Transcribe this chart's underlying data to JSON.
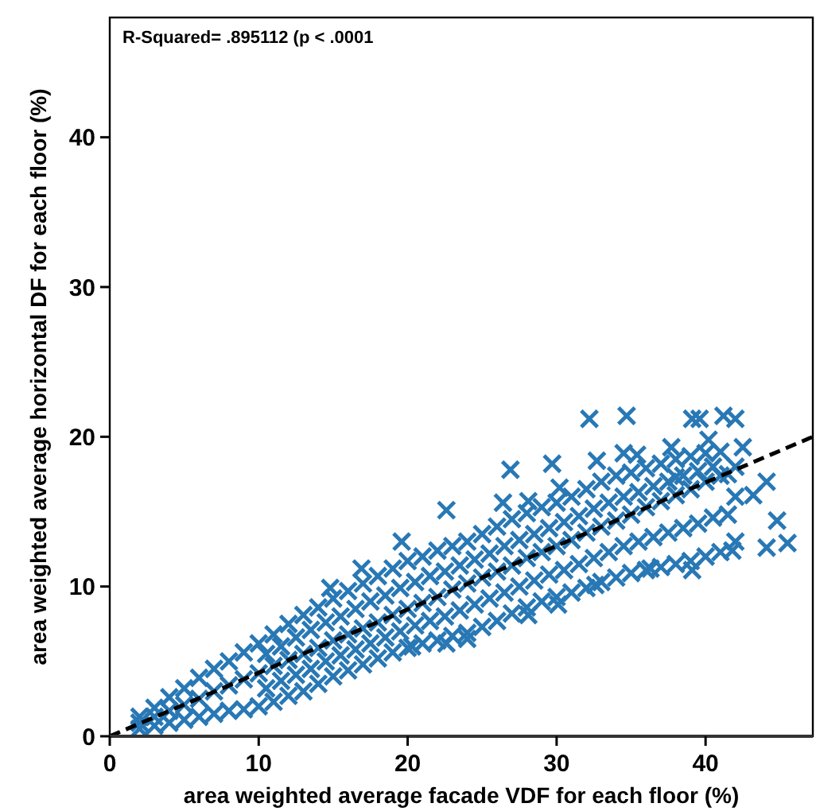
{
  "chart_data": {
    "type": "scatter",
    "xlabel": "area weighted average facade VDF for each floor (%)",
    "ylabel": "area weighted average horizontal DF for each floor (%)",
    "annotations": [
      "R-Squared= .895112 (p < .0001"
    ],
    "xlim": [
      0,
      47.2
    ],
    "ylim": [
      0,
      48
    ],
    "xticks": [
      0,
      10,
      20,
      30,
      40
    ],
    "yticks": [
      0,
      10,
      20,
      30,
      40
    ],
    "series": [
      {
        "color": "#2878b5",
        "marker": "cross",
        "x": [
          2,
          2,
          2,
          3,
          3,
          3,
          4,
          4,
          4,
          5,
          5,
          5,
          6,
          6,
          6,
          7,
          7,
          7,
          8,
          8,
          8,
          9,
          9,
          9,
          10,
          10,
          10,
          11,
          11,
          11,
          12,
          12,
          12,
          13,
          13,
          13,
          14,
          14,
          14,
          15,
          15,
          15,
          16,
          16,
          16,
          17,
          17,
          17,
          18,
          18,
          18,
          19,
          19,
          19,
          20,
          20,
          20,
          21,
          21,
          21,
          22,
          22,
          22,
          23,
          23,
          23,
          24,
          24,
          24,
          25,
          25,
          25,
          26,
          26,
          26,
          27,
          27,
          27,
          28,
          28,
          28,
          29,
          29,
          29,
          30,
          30,
          30,
          31,
          31,
          31,
          32,
          32,
          32,
          33,
          33,
          33,
          34,
          34,
          34,
          35,
          35,
          35,
          36,
          36,
          36,
          37,
          37,
          37,
          38,
          38,
          38,
          39,
          39,
          39,
          40,
          40,
          40,
          41,
          41,
          41,
          42,
          42,
          42,
          10.5,
          10.5,
          11.5,
          11.5,
          12.5,
          12.5,
          13.5,
          13.5,
          14.5,
          14.5,
          15.5,
          15.5,
          16.5,
          16.5,
          17.5,
          17.5,
          18.5,
          18.5,
          19.5,
          19.5,
          20.5,
          20.5,
          21.5,
          21.5,
          22.5,
          22.5,
          23.5,
          23.5,
          24.5,
          24.5,
          25.5,
          25.5,
          26.5,
          26.5,
          27.5,
          27.5,
          28.5,
          28.5,
          29.5,
          29.5,
          30.5,
          30.5,
          31.5,
          31.5,
          32.5,
          32.5,
          33.5,
          33.5,
          34.5,
          34.5,
          35.5,
          35.5,
          36.5,
          36.5,
          37.5,
          37.5,
          38.5,
          38.5,
          39.5,
          39.5,
          40.5,
          40.5,
          41.5,
          41.5,
          32.2,
          34.7,
          39.1,
          39.6,
          41.2,
          42.0,
          26.9,
          29.7,
          22.6,
          19.6,
          16.9,
          14.8,
          45.5,
          44.8,
          44.1,
          43.2,
          42.5,
          40.2,
          37.7,
          34.5,
          35.4,
          32.7,
          44.1,
          41.8,
          39.1,
          36.3,
          32.6,
          30.1,
          28.1,
          24.0,
          22.6,
          20.3,
          26.4,
          28.1,
          30.2,
          38.0
        ],
        "values": [
          0.5,
          0.9,
          1.3,
          0.7,
          1.3,
          1.9,
          0.9,
          1.7,
          2.6,
          1.1,
          2.1,
          3.2,
          1.3,
          2.5,
          3.9,
          1.5,
          3.0,
          4.5,
          1.7,
          3.4,
          5.0,
          1.8,
          3.8,
          5.6,
          2.0,
          4.2,
          6.2,
          2.3,
          4.7,
          6.8,
          2.7,
          5.1,
          7.5,
          3.0,
          5.5,
          8.1,
          3.5,
          5.9,
          8.6,
          4.0,
          6.4,
          9.2,
          4.4,
          6.8,
          9.7,
          4.8,
          7.2,
          10.2,
          5.2,
          7.6,
          10.7,
          5.6,
          8.1,
          11.2,
          5.9,
          8.5,
          11.7,
          6.2,
          8.9,
          12.0,
          6.4,
          9.3,
          12.4,
          6.7,
          9.8,
          12.7,
          6.9,
          10.2,
          13.0,
          7.3,
          10.6,
          13.5,
          7.7,
          11.0,
          14.0,
          8.2,
          11.4,
          14.5,
          8.6,
          11.9,
          14.9,
          9.0,
          12.3,
          15.3,
          9.3,
          12.7,
          15.6,
          9.6,
          13.1,
          16.0,
          9.9,
          13.6,
          16.5,
          10.3,
          14.0,
          17.0,
          10.6,
          14.4,
          17.4,
          10.9,
          14.8,
          17.6,
          11.1,
          15.3,
          17.9,
          11.3,
          15.7,
          18.2,
          11.5,
          16.1,
          18.5,
          11.7,
          16.5,
          18.7,
          12.0,
          17.0,
          18.9,
          12.3,
          17.4,
          19.0,
          13.0,
          16.0,
          18.0,
          3.2,
          5.5,
          3.7,
          6.0,
          4.1,
          6.6,
          4.5,
          7.1,
          5.0,
          7.6,
          5.4,
          8.0,
          5.8,
          8.5,
          6.2,
          9.0,
          6.6,
          9.4,
          7.0,
          9.9,
          7.4,
          10.3,
          7.7,
          10.7,
          8.0,
          11.0,
          8.4,
          11.4,
          8.8,
          11.8,
          9.2,
          12.2,
          9.6,
          12.7,
          10.0,
          13.1,
          10.4,
          13.5,
          10.8,
          13.9,
          11.1,
          14.3,
          11.5,
          14.7,
          11.9,
          15.2,
          12.3,
          15.6,
          12.7,
          16.0,
          13.0,
          16.3,
          13.3,
          16.7,
          13.6,
          17.0,
          13.9,
          17.4,
          14.2,
          17.7,
          14.6,
          18.0,
          14.8,
          17.5,
          21.2,
          21.4,
          21.2,
          21.2,
          21.4,
          21.2,
          17.8,
          18.2,
          15.1,
          13.0,
          11.2,
          9.9,
          12.9,
          14.4,
          17.0,
          16.1,
          19.3,
          19.8,
          19.3,
          18.9,
          18.8,
          18.4,
          12.6,
          12.4,
          11.1,
          11.2,
          10.1,
          8.8,
          8.1,
          6.5,
          6.2,
          6.0,
          15.6,
          15.7,
          16.6,
          17.3
        ]
      },
      {
        "type": "line",
        "color": "#000000",
        "line_style": "dashed",
        "marker": "none",
        "x": [
          0,
          47.2
        ],
        "values": [
          0,
          20
        ]
      }
    ]
  }
}
